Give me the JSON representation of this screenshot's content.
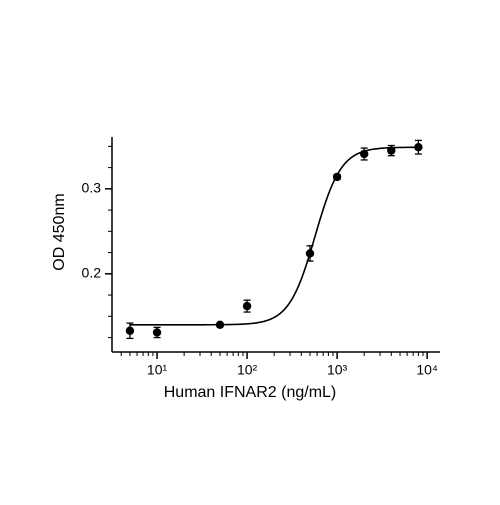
{
  "chart_data": {
    "type": "scatter",
    "x_label": "Human IFNAR2 (ng/mL)",
    "y_label": "OD 450nm",
    "xscale": "log",
    "xlim": [
      3.16,
      13900
    ],
    "ylim": [
      0.108,
      0.361
    ],
    "xticks": [
      {
        "value": 10,
        "label": "10¹"
      },
      {
        "value": 100,
        "label": "10²"
      },
      {
        "value": 1000,
        "label": "10³"
      },
      {
        "value": 10000,
        "label": "10⁴"
      }
    ],
    "xminorticks": [
      4,
      5,
      6,
      7,
      8,
      9,
      20,
      30,
      40,
      50,
      60,
      70,
      80,
      90,
      200,
      300,
      400,
      500,
      600,
      700,
      800,
      900,
      2000,
      3000,
      4000,
      5000,
      6000,
      7000,
      8000,
      9000
    ],
    "yticks": [
      0.2,
      0.3
    ],
    "yminorticks": [
      0.125,
      0.15,
      0.175,
      0.225,
      0.25,
      0.275,
      0.325,
      0.35
    ],
    "color": "#000000",
    "x": [
      5,
      10,
      50,
      100,
      500,
      1000,
      2000,
      4000,
      8000
    ],
    "values": [
      0.133,
      0.131,
      0.14,
      0.162,
      0.224,
      0.314,
      0.341,
      0.345,
      0.349
    ],
    "errors": [
      0.009,
      0.006,
      0.002,
      0.007,
      0.009,
      0.003,
      0.007,
      0.006,
      0.008
    ],
    "fit": {
      "bottom": 0.14,
      "top": 0.349,
      "ec50": 570,
      "hill": 3
    }
  }
}
